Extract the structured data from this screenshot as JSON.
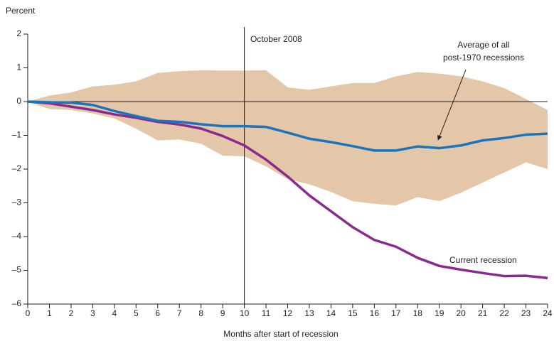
{
  "chart_data": {
    "type": "line",
    "y_label": "Percent",
    "x_label": "Months after start of recession",
    "x": [
      0,
      1,
      2,
      3,
      4,
      5,
      6,
      7,
      8,
      9,
      10,
      11,
      12,
      13,
      14,
      15,
      16,
      17,
      18,
      19,
      20,
      21,
      22,
      23,
      24
    ],
    "xlim": [
      0,
      24
    ],
    "xticks": [
      0,
      1,
      2,
      3,
      4,
      5,
      6,
      7,
      8,
      9,
      10,
      11,
      12,
      13,
      14,
      15,
      16,
      17,
      18,
      19,
      20,
      21,
      22,
      23,
      24
    ],
    "ylim": [
      -6,
      2
    ],
    "yticks": [
      {
        "value": -6,
        "label": "–6"
      },
      {
        "value": -5,
        "label": "–5"
      },
      {
        "value": -4,
        "label": "–4"
      },
      {
        "value": -3,
        "label": "–3"
      },
      {
        "value": -2,
        "label": "–2"
      },
      {
        "value": -1,
        "label": "–1"
      },
      0,
      1,
      2
    ],
    "band": {
      "color": "#e3c7a8",
      "upper": [
        0,
        0.18,
        0.27,
        0.45,
        0.5,
        0.6,
        0.85,
        0.9,
        0.93,
        0.92,
        0.92,
        0.93,
        0.42,
        0.35,
        0.45,
        0.55,
        0.55,
        0.75,
        0.88,
        0.83,
        0.75,
        0.6,
        0.4,
        0.08,
        -0.25
      ],
      "lower": [
        0,
        -0.22,
        -0.25,
        -0.35,
        -0.5,
        -0.8,
        -1.15,
        -1.12,
        -1.25,
        -1.6,
        -1.62,
        -1.92,
        -2.3,
        -2.45,
        -2.68,
        -2.95,
        -3.03,
        -3.08,
        -2.83,
        -2.95,
        -2.7,
        -2.4,
        -2.1,
        -1.8,
        -2.0
      ]
    },
    "series": [
      {
        "name": "Current recession",
        "color": "#8b2a8e",
        "values": [
          0,
          -0.05,
          -0.15,
          -0.25,
          -0.38,
          -0.48,
          -0.6,
          -0.68,
          -0.8,
          -1.02,
          -1.3,
          -1.72,
          -2.22,
          -2.78,
          -3.25,
          -3.72,
          -4.1,
          -4.3,
          -4.63,
          -4.87,
          -4.98,
          -5.08,
          -5.17,
          -5.16,
          -5.23
        ]
      },
      {
        "name": [
          "Average of all",
          "post-1970 recessions"
        ],
        "color": "#1a75bc",
        "values": [
          0,
          -0.02,
          -0.03,
          -0.1,
          -0.28,
          -0.43,
          -0.57,
          -0.6,
          -0.67,
          -0.73,
          -0.73,
          -0.75,
          -0.92,
          -1.1,
          -1.2,
          -1.32,
          -1.45,
          -1.45,
          -1.33,
          -1.38,
          -1.3,
          -1.15,
          -1.08,
          -0.98,
          -0.95
        ]
      }
    ],
    "vline": {
      "x": 10,
      "label": "October 2008"
    }
  }
}
